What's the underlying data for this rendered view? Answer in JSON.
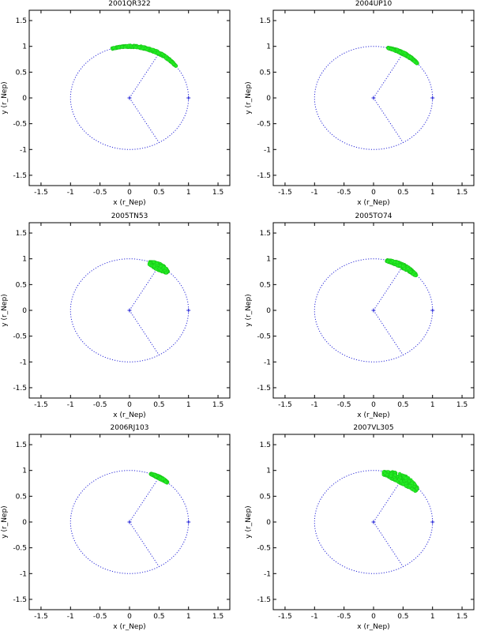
{
  "figure": {
    "colors": {
      "orbit": "#2a2ad8",
      "cloud": "#22ee22",
      "cloud_edge": "#16b016",
      "axes": "#000000"
    }
  },
  "chart_data": [
    {
      "type": "scatter",
      "title": "2001QR322",
      "xlabel": "x (r_Nep)",
      "ylabel": "y (r_Nep)",
      "xlim": [
        -1.7,
        1.7
      ],
      "ylim": [
        -1.7,
        1.7
      ],
      "xticks": [
        -1.5,
        -1,
        -0.5,
        0,
        0.5,
        1,
        1.5
      ],
      "yticks": [
        -1.5,
        -1,
        -0.5,
        0,
        0.5,
        1,
        1.5
      ],
      "xtick_labels": [
        "-1.5",
        "-1",
        "-0.5",
        "0",
        "0.5",
        "1",
        "1.5"
      ],
      "ytick_labels": [
        "-1.5",
        "-1",
        "-0.5",
        "0",
        "0.5",
        "1",
        "1.5"
      ],
      "grid": false,
      "orbit_radius": 1.0,
      "neptune_position": [
        1.0,
        0.0
      ],
      "lagrange_points": [
        [
          0.5,
          0.866
        ],
        [
          0.5,
          -0.866
        ]
      ],
      "cloud_arc": {
        "radius": 1.0,
        "theta_start_deg": 38,
        "theta_end_deg": 107,
        "thickness": 0.05
      }
    },
    {
      "type": "scatter",
      "title": "2004UP10",
      "xlabel": "x (r_Nep)",
      "ylabel": "y (r_Nep)",
      "xlim": [
        -1.7,
        1.7
      ],
      "ylim": [
        -1.7,
        1.7
      ],
      "xticks": [
        -1.5,
        -1,
        -0.5,
        0,
        0.5,
        1,
        1.5
      ],
      "yticks": [
        -1.5,
        -1,
        -0.5,
        0,
        0.5,
        1,
        1.5
      ],
      "xtick_labels": [
        "-1.5",
        "-1",
        "-0.5",
        "0",
        "0.5",
        "1",
        "1.5"
      ],
      "ytick_labels": [
        "-1.5",
        "-1",
        "-0.5",
        "0",
        "0.5",
        "1",
        "1.5"
      ],
      "grid": false,
      "orbit_radius": 1.0,
      "neptune_position": [
        1.0,
        0.0
      ],
      "lagrange_points": [
        [
          0.5,
          0.866
        ],
        [
          0.5,
          -0.866
        ]
      ],
      "cloud_arc": {
        "radius": 1.0,
        "theta_start_deg": 42,
        "theta_end_deg": 76,
        "thickness": 0.05
      }
    },
    {
      "type": "scatter",
      "title": "2005TN53",
      "xlabel": "x (r_Nep)",
      "ylabel": "y (r_Nep)",
      "xlim": [
        -1.7,
        1.7
      ],
      "ylim": [
        -1.7,
        1.7
      ],
      "xticks": [
        -1.5,
        -1,
        -0.5,
        0,
        0.5,
        1,
        1.5
      ],
      "yticks": [
        -1.5,
        -1,
        -0.5,
        0,
        0.5,
        1,
        1.5
      ],
      "xtick_labels": [
        "-1.5",
        "-1",
        "-0.5",
        "0",
        "0.5",
        "1",
        "1.5"
      ],
      "ytick_labels": [
        "-1.5",
        "-1",
        "-0.5",
        "0",
        "0.5",
        "1",
        "1.5"
      ],
      "grid": false,
      "orbit_radius": 1.0,
      "neptune_position": [
        1.0,
        0.0
      ],
      "lagrange_points": [
        [
          0.5,
          0.866
        ],
        [
          0.5,
          -0.866
        ]
      ],
      "cloud_arc": {
        "radius": 0.98,
        "theta_start_deg": 49,
        "theta_end_deg": 70,
        "thickness": 0.13
      }
    },
    {
      "type": "scatter",
      "title": "2005TO74",
      "xlabel": "x (r_Nep)",
      "ylabel": "y (r_Nep)",
      "xlim": [
        -1.7,
        1.7
      ],
      "ylim": [
        -1.7,
        1.7
      ],
      "xticks": [
        -1.5,
        -1,
        -0.5,
        0,
        0.5,
        1,
        1.5
      ],
      "yticks": [
        -1.5,
        -1,
        -0.5,
        0,
        0.5,
        1,
        1.5
      ],
      "xtick_labels": [
        "-1.5",
        "-1",
        "-0.5",
        "0",
        "0.5",
        "1",
        "1.5"
      ],
      "ytick_labels": [
        "-1.5",
        "-1",
        "-0.5",
        "0",
        "0.5",
        "1",
        "1.5"
      ],
      "grid": false,
      "orbit_radius": 1.0,
      "neptune_position": [
        1.0,
        0.0
      ],
      "lagrange_points": [
        [
          0.5,
          0.866
        ],
        [
          0.5,
          -0.866
        ]
      ],
      "cloud_arc": {
        "radius": 0.99,
        "theta_start_deg": 43,
        "theta_end_deg": 77,
        "thickness": 0.08
      }
    },
    {
      "type": "scatter",
      "title": "2006RJ103",
      "xlabel": "x (r_Nep)",
      "ylabel": "y (r_Nep)",
      "xlim": [
        -1.7,
        1.7
      ],
      "ylim": [
        -1.7,
        1.7
      ],
      "xticks": [
        -1.5,
        -1,
        -0.5,
        0,
        0.5,
        1,
        1.5
      ],
      "yticks": [
        -1.5,
        -1,
        -0.5,
        0,
        0.5,
        1,
        1.5
      ],
      "xtick_labels": [
        "-1.5",
        "-1",
        "-0.5",
        "0",
        "0.5",
        "1",
        "1.5"
      ],
      "ytick_labels": [
        "-1.5",
        "-1",
        "-0.5",
        "0",
        "0.5",
        "1",
        "1.5"
      ],
      "grid": false,
      "orbit_radius": 1.0,
      "neptune_position": [
        1.0,
        0.0
      ],
      "lagrange_points": [
        [
          0.5,
          0.866
        ],
        [
          0.5,
          -0.866
        ]
      ],
      "cloud_arc": {
        "radius": 1.0,
        "theta_start_deg": 50,
        "theta_end_deg": 69,
        "thickness": 0.05
      }
    },
    {
      "type": "scatter",
      "title": "2007VL305",
      "xlabel": "x (r_Nep)",
      "ylabel": "y (r_Nep)",
      "xlim": [
        -1.7,
        1.7
      ],
      "ylim": [
        -1.7,
        1.7
      ],
      "xticks": [
        -1.5,
        -1,
        -0.5,
        0,
        0.5,
        1,
        1.5
      ],
      "yticks": [
        -1.5,
        -1,
        -0.5,
        0,
        0.5,
        1,
        1.5
      ],
      "xtick_labels": [
        "-1.5",
        "-1",
        "-0.5",
        "0",
        "0.5",
        "1",
        "1.5"
      ],
      "ytick_labels": [
        "-1.5",
        "-1",
        "-0.5",
        "0",
        "0.5",
        "1",
        "1.5"
      ],
      "grid": false,
      "orbit_radius": 1.0,
      "neptune_position": [
        1.0,
        0.0
      ],
      "lagrange_points": [
        [
          0.5,
          0.866
        ],
        [
          0.5,
          -0.866
        ]
      ],
      "cloud_arc": {
        "radius": 0.96,
        "theta_start_deg": 40,
        "theta_end_deg": 80,
        "thickness": 0.17
      }
    }
  ]
}
